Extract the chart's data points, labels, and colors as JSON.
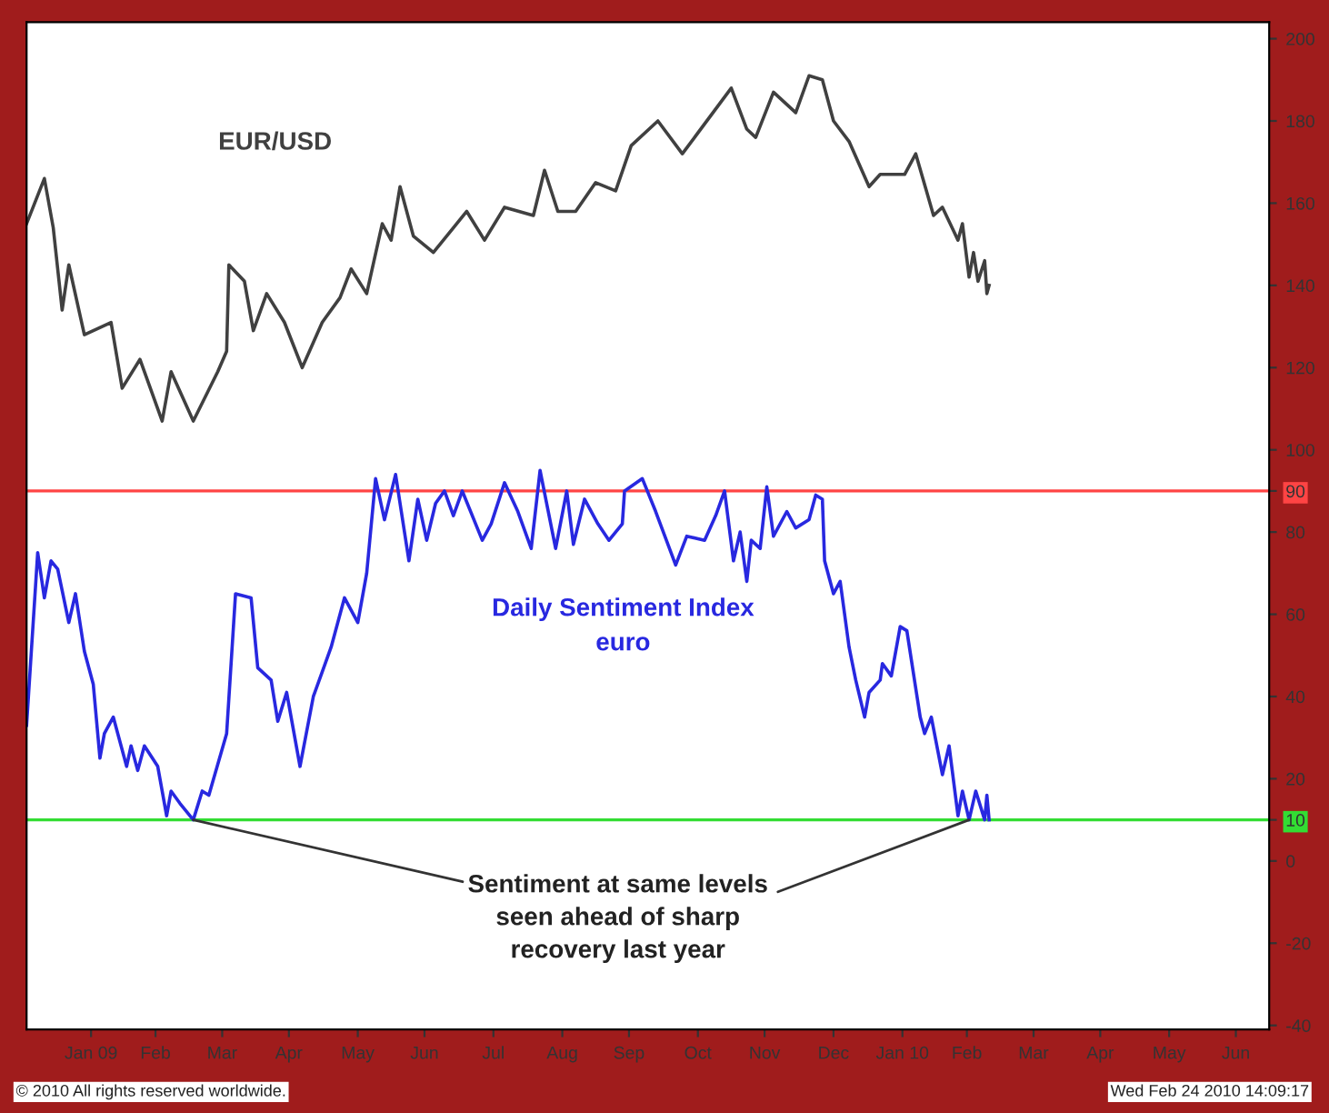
{
  "chart_data": {
    "type": "line",
    "xlim": [
      "2008-12-18",
      "2010-06-30"
    ],
    "ylim": [
      -41,
      204
    ],
    "xticks": [
      {
        "value": "2009-01-16",
        "label": "Jan 09"
      },
      {
        "value": "2009-02-14",
        "label": "Feb"
      },
      {
        "value": "2009-03-16",
        "label": "Mar"
      },
      {
        "value": "2009-04-15",
        "label": "Apr"
      },
      {
        "value": "2009-05-16",
        "label": "May"
      },
      {
        "value": "2009-06-15",
        "label": "Jun"
      },
      {
        "value": "2009-07-16",
        "label": "Jul"
      },
      {
        "value": "2009-08-16",
        "label": "Aug"
      },
      {
        "value": "2009-09-15",
        "label": "Sep"
      },
      {
        "value": "2009-10-16",
        "label": "Oct"
      },
      {
        "value": "2009-11-15",
        "label": "Nov"
      },
      {
        "value": "2009-12-16",
        "label": "Dec"
      },
      {
        "value": "2010-01-16",
        "label": "Jan 10"
      },
      {
        "value": "2010-02-14",
        "label": "Feb"
      },
      {
        "value": "2010-03-16",
        "label": "Mar"
      },
      {
        "value": "2010-04-15",
        "label": "Apr"
      },
      {
        "value": "2010-05-16",
        "label": "May"
      },
      {
        "value": "2010-06-15",
        "label": "Jun"
      }
    ],
    "yticks": [
      200,
      180,
      160,
      140,
      120,
      100,
      90,
      80,
      60,
      40,
      20,
      10,
      0,
      -20,
      -40
    ],
    "grid": false,
    "legend": false,
    "marker": "none",
    "line_style": "solid",
    "series": [
      {
        "name": "EUR/USD",
        "color": "#404040",
        "x": [
          "2008-12-18",
          "2008-12-26",
          "2008-12-30",
          "2009-01-03",
          "2009-01-06",
          "2009-01-13",
          "2009-01-25",
          "2009-01-30",
          "2009-02-07",
          "2009-02-17",
          "2009-02-21",
          "2009-03-03",
          "2009-03-14",
          "2009-03-18",
          "2009-03-19",
          "2009-03-26",
          "2009-03-30",
          "2009-04-05",
          "2009-04-13",
          "2009-04-21",
          "2009-04-30",
          "2009-05-08",
          "2009-05-13",
          "2009-05-20",
          "2009-05-27",
          "2009-05-31",
          "2009-06-04",
          "2009-06-10",
          "2009-06-19",
          "2009-07-04",
          "2009-07-12",
          "2009-07-21",
          "2009-08-03",
          "2009-08-08",
          "2009-08-14",
          "2009-08-22",
          "2009-08-31",
          "2009-09-09",
          "2009-09-16",
          "2009-09-28",
          "2009-10-09",
          "2009-10-31",
          "2009-11-07",
          "2009-11-11",
          "2009-11-19",
          "2009-11-29",
          "2009-12-05",
          "2009-12-11",
          "2009-12-16",
          "2009-12-23",
          "2010-01-01",
          "2010-01-06",
          "2010-01-17",
          "2010-01-22",
          "2010-01-30",
          "2010-02-03",
          "2010-02-10",
          "2010-02-12",
          "2010-02-15",
          "2010-02-17",
          "2010-02-19",
          "2010-02-22",
          "2010-02-23",
          "2010-02-24"
        ],
        "values": [
          155,
          166,
          154,
          134,
          145,
          128,
          131,
          115,
          122,
          107,
          119,
          107,
          119,
          124,
          145,
          141,
          129,
          138,
          131,
          120,
          131,
          137,
          144,
          138,
          155,
          151,
          164,
          152,
          148,
          158,
          151,
          159,
          157,
          168,
          158,
          158,
          165,
          163,
          174,
          180,
          172,
          188,
          178,
          176,
          187,
          182,
          191,
          190,
          180,
          175,
          164,
          167,
          167,
          172,
          157,
          159,
          151,
          155,
          142,
          148,
          141,
          146,
          138,
          140
        ]
      },
      {
        "name": "Daily Sentiment Index\neuro",
        "color": "#2828e0",
        "x": [
          "2008-12-18",
          "2008-12-23",
          "2008-12-26",
          "2008-12-29",
          "2009-01-01",
          "2009-01-06",
          "2009-01-09",
          "2009-01-13",
          "2009-01-17",
          "2009-01-20",
          "2009-01-22",
          "2009-01-26",
          "2009-02-01",
          "2009-02-03",
          "2009-02-06",
          "2009-02-09",
          "2009-02-15",
          "2009-02-19",
          "2009-02-21",
          "2009-02-25",
          "2009-03-03",
          "2009-03-07",
          "2009-03-10",
          "2009-03-18",
          "2009-03-22",
          "2009-03-29",
          "2009-04-01",
          "2009-04-07",
          "2009-04-10",
          "2009-04-14",
          "2009-04-20",
          "2009-04-26",
          "2009-04-30",
          "2009-05-04",
          "2009-05-10",
          "2009-05-16",
          "2009-05-20",
          "2009-05-24",
          "2009-05-28",
          "2009-06-02",
          "2009-06-08",
          "2009-06-12",
          "2009-06-16",
          "2009-06-20",
          "2009-06-24",
          "2009-06-28",
          "2009-07-02",
          "2009-07-11",
          "2009-07-15",
          "2009-07-21",
          "2009-07-27",
          "2009-08-02",
          "2009-08-06",
          "2009-08-13",
          "2009-08-18",
          "2009-08-21",
          "2009-08-26",
          "2009-09-01",
          "2009-09-06",
          "2009-09-12",
          "2009-09-13",
          "2009-09-21",
          "2009-09-27",
          "2009-10-06",
          "2009-10-11",
          "2009-10-19",
          "2009-10-24",
          "2009-10-28",
          "2009-11-01",
          "2009-11-04",
          "2009-11-07",
          "2009-11-09",
          "2009-11-13",
          "2009-11-16",
          "2009-11-19",
          "2009-11-25",
          "2009-11-29",
          "2009-12-05",
          "2009-12-08",
          "2009-12-11",
          "2009-12-12",
          "2009-12-16",
          "2009-12-19",
          "2009-12-23",
          "2009-12-26",
          "2009-12-30",
          "2010-01-01",
          "2010-01-06",
          "2010-01-07",
          "2010-01-11",
          "2010-01-15",
          "2010-01-18",
          "2010-01-24",
          "2010-01-26",
          "2010-01-29",
          "2010-02-03",
          "2010-02-06",
          "2010-02-10",
          "2010-02-12",
          "2010-02-15",
          "2010-02-18",
          "2010-02-22",
          "2010-02-23",
          "2010-02-24"
        ],
        "values": [
          33,
          75,
          64,
          73,
          71,
          58,
          65,
          51,
          43,
          25,
          31,
          35,
          23,
          28,
          22,
          28,
          23,
          11,
          17,
          14,
          10,
          17,
          16,
          31,
          65,
          64,
          47,
          44,
          34,
          41,
          23,
          40,
          46,
          52,
          64,
          58,
          70,
          93,
          83,
          94,
          73,
          88,
          78,
          87,
          90,
          84,
          90,
          78,
          82,
          92,
          85,
          76,
          95,
          76,
          90,
          77,
          88,
          82,
          78,
          82,
          90,
          93,
          85,
          72,
          79,
          78,
          84,
          90,
          73,
          80,
          68,
          78,
          76,
          91,
          79,
          85,
          81,
          83,
          89,
          88,
          73,
          65,
          68,
          52,
          44,
          35,
          41,
          44,
          48,
          45,
          57,
          56,
          35,
          31,
          35,
          21,
          28,
          11,
          17,
          10,
          17,
          10,
          16,
          10
        ]
      }
    ],
    "ref_lines": [
      {
        "axis": "y",
        "value": 90,
        "color": "#ff4444"
      },
      {
        "axis": "y",
        "value": 10,
        "color": "#33dd33"
      }
    ],
    "annotations": [
      {
        "text": "Sentiment at same levels\nseen ahead of sharp\nrecovery last year",
        "x": "2009-03-03",
        "y": 10
      },
      "© 2010 All rights reserved worldwide.",
      "Wed Feb 24 2010 14:09:17"
    ]
  }
}
